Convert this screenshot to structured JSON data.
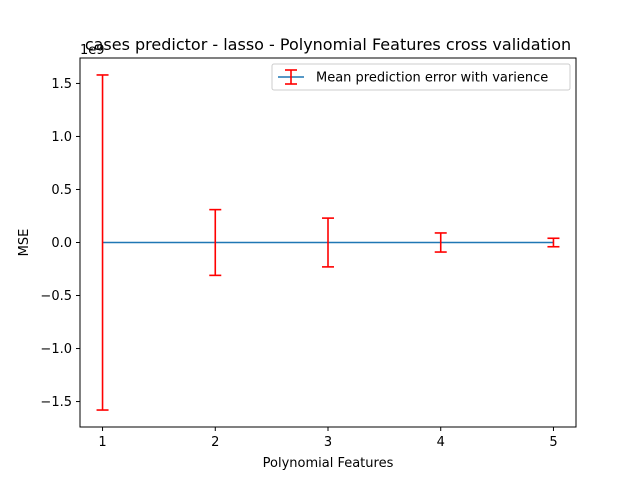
{
  "chart_data": {
    "type": "line",
    "title": "cases predictor - lasso - Polynomial Features cross validation",
    "xlabel": "Polynomial Features",
    "ylabel": "MSE",
    "y_offset_label": "1e9",
    "x": [
      1,
      2,
      3,
      4,
      5
    ],
    "xticks": [
      1,
      2,
      3,
      4,
      5
    ],
    "xlim": [
      0.8,
      5.2
    ],
    "yticks": [
      -1.5,
      -1.0,
      -0.5,
      0.0,
      0.5,
      1.0,
      1.5
    ],
    "ylim": [
      -1.74,
      1.74
    ],
    "grid": false,
    "legend_position": "upper-right",
    "series": [
      {
        "name": "Mean prediction error with varience",
        "values": [
          0.0,
          0.0,
          0.0,
          0.0,
          0.0
        ],
        "errors": [
          1.58,
          0.31,
          0.23,
          0.09,
          0.04
        ],
        "line_color": "#1f77b4",
        "error_color": "#ff0000"
      }
    ]
  }
}
